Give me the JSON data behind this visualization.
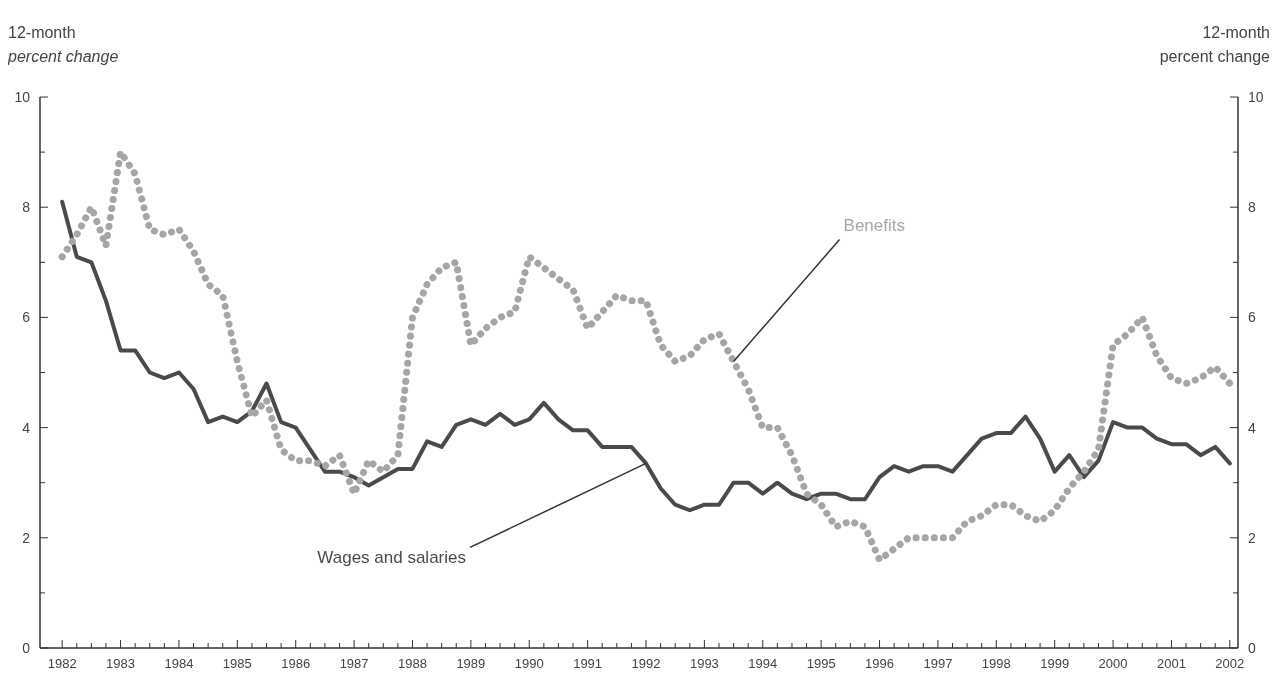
{
  "chart_data": {
    "type": "line",
    "ylabel": "12-month\npercent change",
    "y2label": "12-month\npercent change",
    "x": [
      1982,
      1982.25,
      1982.5,
      1982.75,
      1983,
      1983.25,
      1983.5,
      1983.75,
      1984,
      1984.25,
      1984.5,
      1984.75,
      1985,
      1985.25,
      1985.5,
      1985.75,
      1986,
      1986.25,
      1986.5,
      1986.75,
      1987,
      1987.25,
      1987.5,
      1987.75,
      1988,
      1988.25,
      1988.5,
      1988.75,
      1989,
      1989.25,
      1989.5,
      1989.75,
      1990,
      1990.25,
      1990.5,
      1990.75,
      1991,
      1991.25,
      1991.5,
      1991.75,
      1992,
      1992.25,
      1992.5,
      1992.75,
      1993,
      1993.25,
      1993.5,
      1993.75,
      1994,
      1994.25,
      1994.5,
      1994.75,
      1995,
      1995.25,
      1995.5,
      1995.75,
      1996,
      1996.25,
      1996.5,
      1996.75,
      1997,
      1997.25,
      1997.5,
      1997.75,
      1998,
      1998.25,
      1998.5,
      1998.75,
      1999,
      1999.25,
      1999.5,
      1999.75,
      2000,
      2000.25,
      2000.5,
      2000.75,
      2001,
      2001.25,
      2001.5,
      2001.75,
      2002
    ],
    "series": [
      {
        "name": "Wages and salaries",
        "color": "#4a4a4a",
        "line_style": "solid",
        "values": [
          8.1,
          7.1,
          7.0,
          6.3,
          5.4,
          5.4,
          5.0,
          4.9,
          5.0,
          4.7,
          4.1,
          4.2,
          4.1,
          4.3,
          4.8,
          4.1,
          4.0,
          3.6,
          3.2,
          3.2,
          3.1,
          2.95,
          3.1,
          3.25,
          3.25,
          3.75,
          3.65,
          4.05,
          4.15,
          4.05,
          4.25,
          4.05,
          4.15,
          4.45,
          4.15,
          3.95,
          3.95,
          3.65,
          3.65,
          3.65,
          3.35,
          2.9,
          2.6,
          2.5,
          2.6,
          2.6,
          3.0,
          3.0,
          2.8,
          3.0,
          2.8,
          2.7,
          2.8,
          2.8,
          2.7,
          2.7,
          3.1,
          3.3,
          3.2,
          3.3,
          3.3,
          3.2,
          3.5,
          3.8,
          3.9,
          3.9,
          4.2,
          3.8,
          3.2,
          3.5,
          3.1,
          3.4,
          4.1,
          4.0,
          4.0,
          3.8,
          3.7,
          3.7,
          3.5,
          3.65,
          3.35
        ]
      },
      {
        "name": "Benefits",
        "color": "#a6a6a6",
        "line_style": "dotted",
        "values": [
          7.1,
          7.5,
          8.0,
          7.3,
          9.0,
          8.6,
          7.6,
          7.5,
          7.6,
          7.2,
          6.6,
          6.4,
          5.2,
          4.2,
          4.5,
          3.6,
          3.4,
          3.4,
          3.3,
          3.5,
          2.8,
          3.4,
          3.2,
          3.5,
          6.0,
          6.6,
          6.9,
          7.0,
          5.5,
          5.8,
          6.0,
          6.1,
          7.1,
          6.9,
          6.7,
          6.5,
          5.8,
          6.1,
          6.4,
          6.3,
          6.3,
          5.5,
          5.2,
          5.3,
          5.6,
          5.7,
          5.2,
          4.7,
          4.0,
          4.0,
          3.5,
          2.8,
          2.6,
          2.2,
          2.3,
          2.2,
          1.6,
          1.8,
          2.0,
          2.0,
          2.0,
          2.0,
          2.3,
          2.4,
          2.6,
          2.6,
          2.4,
          2.3,
          2.5,
          2.9,
          3.2,
          3.6,
          5.5,
          5.7,
          6.0,
          5.3,
          4.9,
          4.8,
          4.9,
          5.1,
          4.8
        ]
      }
    ],
    "marker": "none",
    "xlim": [
      1981.62,
      2002.14
    ],
    "xticks": [
      1982,
      {
        "value": 1982.25,
        "label": null
      },
      {
        "value": 1982.5,
        "label": null
      },
      {
        "value": 1982.75,
        "label": null
      },
      1983,
      {
        "value": 1983.25,
        "label": null
      },
      {
        "value": 1983.5,
        "label": null
      },
      {
        "value": 1983.75,
        "label": null
      },
      1984,
      {
        "value": 1984.25,
        "label": null
      },
      {
        "value": 1984.5,
        "label": null
      },
      {
        "value": 1984.75,
        "label": null
      },
      1985,
      {
        "value": 1985.25,
        "label": null
      },
      {
        "value": 1985.5,
        "label": null
      },
      {
        "value": 1985.75,
        "label": null
      },
      1986,
      {
        "value": 1986.25,
        "label": null
      },
      {
        "value": 1986.5,
        "label": null
      },
      {
        "value": 1986.75,
        "label": null
      },
      1987,
      {
        "value": 1987.25,
        "label": null
      },
      {
        "value": 1987.5,
        "label": null
      },
      {
        "value": 1987.75,
        "label": null
      },
      1988,
      {
        "value": 1988.25,
        "label": null
      },
      {
        "value": 1988.5,
        "label": null
      },
      {
        "value": 1988.75,
        "label": null
      },
      1989,
      {
        "value": 1989.25,
        "label": null
      },
      {
        "value": 1989.5,
        "label": null
      },
      {
        "value": 1989.75,
        "label": null
      },
      1990,
      {
        "value": 1990.25,
        "label": null
      },
      {
        "value": 1990.5,
        "label": null
      },
      {
        "value": 1990.75,
        "label": null
      },
      1991,
      {
        "value": 1991.25,
        "label": null
      },
      {
        "value": 1991.5,
        "label": null
      },
      {
        "value": 1991.75,
        "label": null
      },
      1992,
      {
        "value": 1992.25,
        "label": null
      },
      {
        "value": 1992.5,
        "label": null
      },
      {
        "value": 1992.75,
        "label": null
      },
      1993,
      {
        "value": 1993.25,
        "label": null
      },
      {
        "value": 1993.5,
        "label": null
      },
      {
        "value": 1993.75,
        "label": null
      },
      1994,
      {
        "value": 1994.25,
        "label": null
      },
      {
        "value": 1994.5,
        "label": null
      },
      {
        "value": 1994.75,
        "label": null
      },
      1995,
      {
        "value": 1995.25,
        "label": null
      },
      {
        "value": 1995.5,
        "label": null
      },
      {
        "value": 1995.75,
        "label": null
      },
      1996,
      {
        "value": 1996.25,
        "label": null
      },
      {
        "value": 1996.5,
        "label": null
      },
      {
        "value": 1996.75,
        "label": null
      },
      1997,
      {
        "value": 1997.25,
        "label": null
      },
      {
        "value": 1997.5,
        "label": null
      },
      {
        "value": 1997.75,
        "label": null
      },
      1998,
      {
        "value": 1998.25,
        "label": null
      },
      {
        "value": 1998.5,
        "label": null
      },
      {
        "value": 1998.75,
        "label": null
      },
      1999,
      {
        "value": 1999.25,
        "label": null
      },
      {
        "value": 1999.5,
        "label": null
      },
      {
        "value": 1999.75,
        "label": null
      },
      2000,
      {
        "value": 2000.25,
        "label": null
      },
      {
        "value": 2000.5,
        "label": null
      },
      {
        "value": 2000.75,
        "label": null
      },
      2001,
      {
        "value": 2001.25,
        "label": null
      },
      {
        "value": 2001.5,
        "label": null
      },
      {
        "value": 2001.75,
        "label": null
      },
      2002
    ],
    "ylim": [
      0,
      10
    ],
    "yticks": [
      0,
      {
        "value": 1,
        "label": null
      },
      2,
      {
        "value": 3,
        "label": null
      },
      4,
      {
        "value": 5,
        "label": null
      },
      6,
      {
        "value": 7,
        "label": null
      },
      8,
      {
        "value": 9,
        "label": null
      },
      10
    ],
    "y2lim": [
      0,
      10
    ],
    "y2ticks": [
      0,
      {
        "value": 1,
        "label": null
      },
      2,
      {
        "value": 3,
        "label": null
      },
      4,
      {
        "value": 5,
        "label": null
      },
      6,
      {
        "value": 7,
        "label": null
      },
      8,
      {
        "value": 9,
        "label": null
      },
      10
    ]
  }
}
